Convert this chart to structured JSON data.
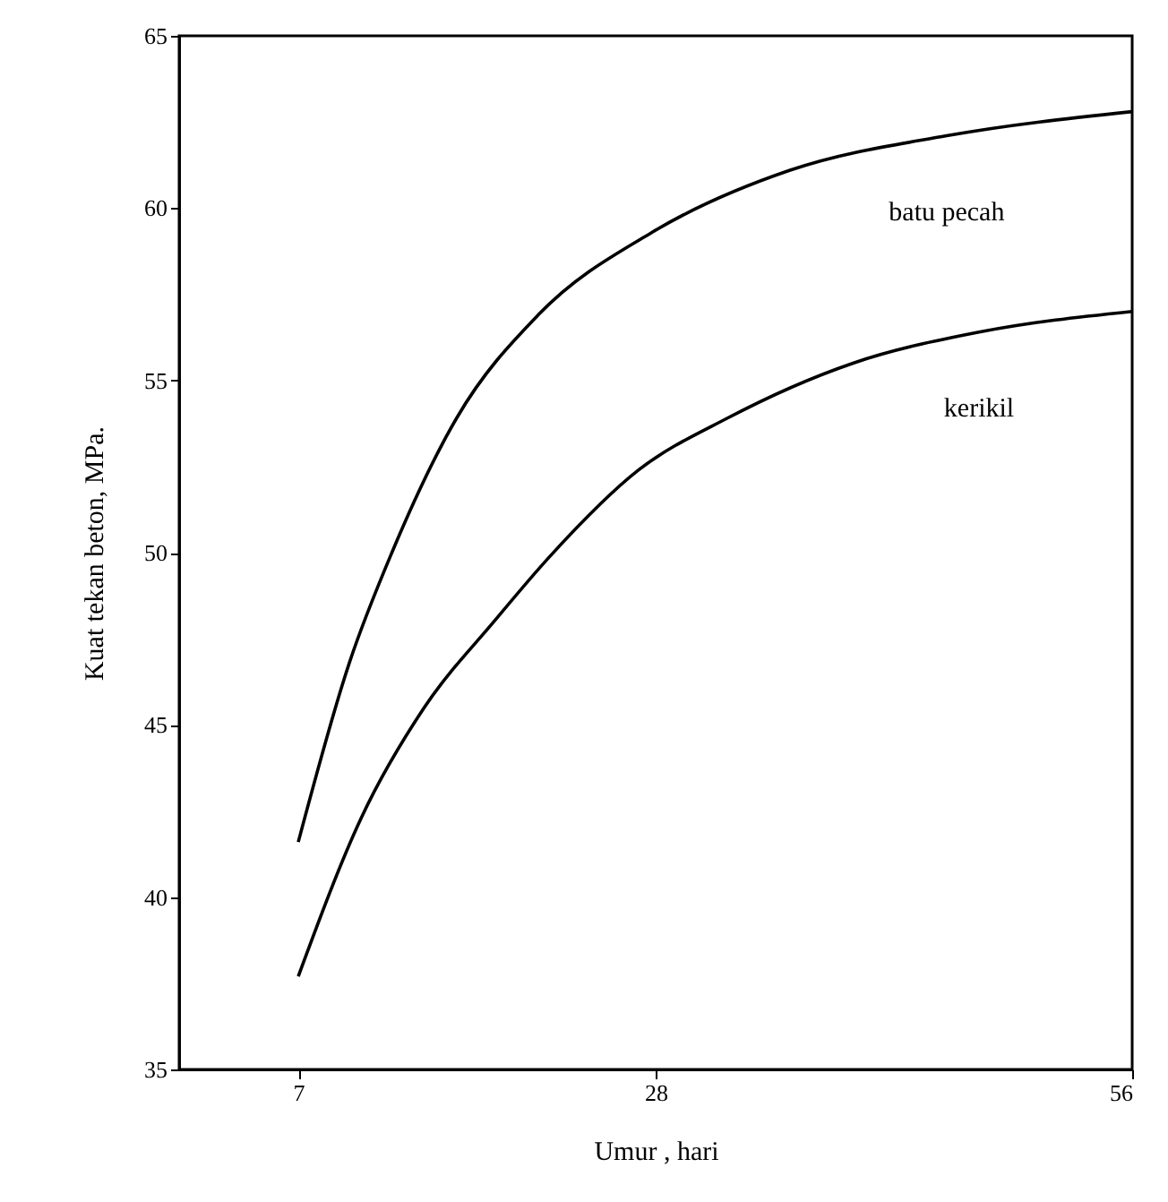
{
  "chart_data": {
    "type": "line",
    "xlabel": "Umur , hari",
    "ylabel": "Kuat tekan beton, MPa.",
    "xlim": [
      0,
      56
    ],
    "xticks": [
      7,
      28,
      56
    ],
    "ylim": [
      35,
      65
    ],
    "yticks": [
      35,
      40,
      45,
      50,
      55,
      60,
      65
    ],
    "grid": false,
    "legend": false,
    "marker": "none",
    "line_style": "solid",
    "series": [
      {
        "name": "batu pecah",
        "color": "#000000",
        "x": [
          7,
          10,
          12.5,
          16.3,
          21.1,
          27.8,
          35.9,
          45.1,
          56
        ],
        "values": [
          41.6,
          46.8,
          50.0,
          53.9,
          56.9,
          59.3,
          61.1,
          62.1,
          62.8
        ]
      },
      {
        "name": "kerikil",
        "color": "#000000",
        "x": [
          7,
          10.7,
          14.4,
          18.5,
          21.8,
          27,
          32.2,
          39.6,
          47,
          56
        ],
        "values": [
          37.7,
          42.3,
          45.5,
          48.0,
          49.9,
          52.4,
          53.9,
          55.5,
          56.4,
          57.0
        ]
      }
    ]
  }
}
